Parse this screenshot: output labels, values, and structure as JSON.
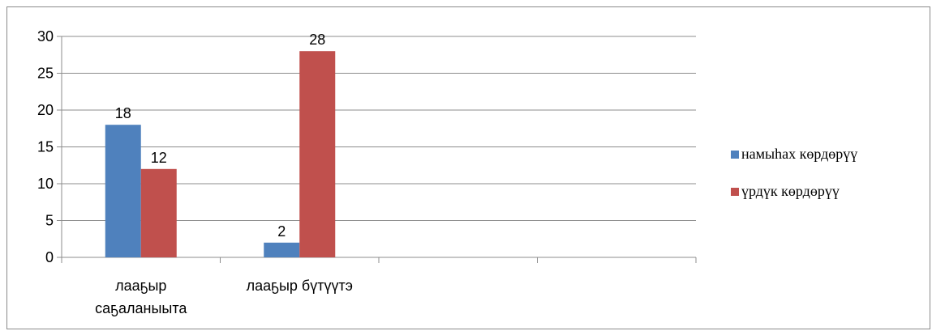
{
  "chart_data": {
    "type": "bar",
    "categories": [
      [
        "лааҕыр",
        "саҕаланыыта"
      ],
      [
        "лааҕыр бүтүүтэ"
      ],
      [
        ""
      ],
      [
        ""
      ]
    ],
    "series": [
      {
        "name": "намыһах көрдөрүү",
        "color": "#4f81bd",
        "values": [
          18,
          2,
          null,
          null
        ]
      },
      {
        "name": "үрдүк көрдөрүү",
        "color": "#c0504d",
        "values": [
          12,
          28,
          null,
          null
        ]
      }
    ],
    "ylim": [
      0,
      30
    ],
    "yticks": [
      0,
      5,
      10,
      15,
      20,
      25,
      30
    ],
    "grid": true,
    "legend_position": "right",
    "data_labels": true
  }
}
